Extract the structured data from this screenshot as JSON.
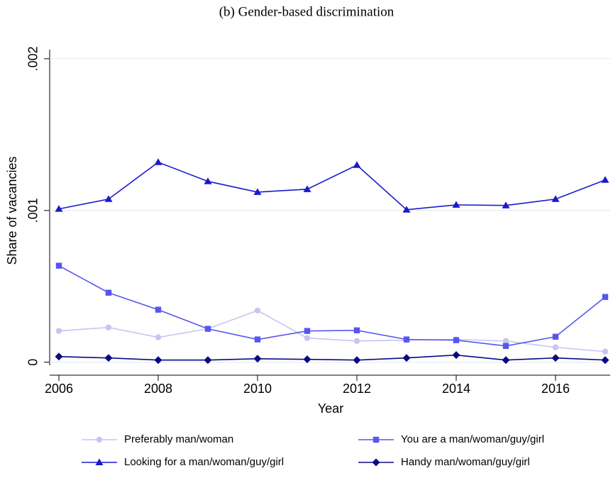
{
  "chart_data": {
    "type": "line",
    "title": "(b) Gender-based discrimination",
    "x_label": "Year",
    "y_label": "Share of vacancies",
    "x": [
      2006,
      2007,
      2008,
      2009,
      2010,
      2011,
      2012,
      2013,
      2014,
      2015,
      2016,
      2017
    ],
    "xlim": [
      2006,
      2017
    ],
    "xticks": [
      2006,
      2008,
      2010,
      2012,
      2014,
      2016
    ],
    "ylim": [
      -2e-05,
      0.00206
    ],
    "yticks": [
      {
        "value": 0,
        "label": "0"
      },
      {
        "value": 0.001,
        "label": ".001"
      },
      {
        "value": 0.002,
        "label": ".002"
      }
    ],
    "grid": true,
    "series": [
      {
        "name": "Preferably man/woman",
        "color": "#c6c6f2",
        "marker": "circle",
        "values": [
          0.000206,
          0.000229,
          0.000164,
          0.00022,
          0.000341,
          0.000159,
          0.00014,
          0.000145,
          0.00015,
          0.00014,
          9.8e-05,
          7e-05
        ]
      },
      {
        "name": "You are a man/woman/guy/girl",
        "color": "#5656ee",
        "marker": "square",
        "values": [
          0.000636,
          0.000458,
          0.000346,
          0.00022,
          0.00015,
          0.000206,
          0.00021,
          0.00015,
          0.000145,
          0.000107,
          0.000168,
          0.00043
        ]
      },
      {
        "name": "Looking for a man/woman/guy/girl",
        "color": "#1a1acc",
        "marker": "triangle",
        "values": [
          0.00101,
          0.001075,
          0.001318,
          0.001192,
          0.001121,
          0.00114,
          0.001299,
          0.001005,
          0.001037,
          0.001033,
          0.001075,
          0.001201
        ]
      },
      {
        "name": "Handy man/woman/guy/girl",
        "color": "#0a0a80",
        "marker": "diamond",
        "values": [
          3.7e-05,
          2.8e-05,
          1.4e-05,
          1.4e-05,
          2.3e-05,
          1.9e-05,
          1.4e-05,
          2.8e-05,
          4.7e-05,
          1.4e-05,
          2.8e-05,
          1.4e-05
        ]
      }
    ]
  }
}
